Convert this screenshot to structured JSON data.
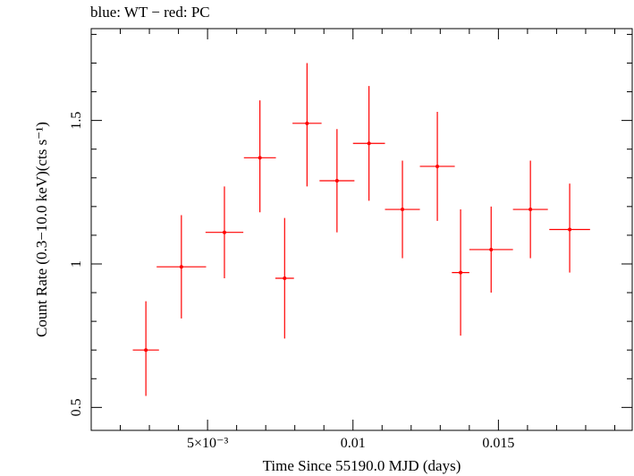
{
  "chart_data": {
    "type": "scatter",
    "title": "blue: WT − red: PC",
    "xlabel": "Time Since 55190.0 MJD (days)",
    "ylabel": "Count Rate (0.3−10.0 keV)(cts s⁻¹)",
    "xlim": [
      0.001,
      0.0196
    ],
    "ylim": [
      0.42,
      1.82
    ],
    "x_ticks": [
      {
        "value": 0.005,
        "label": "5×10⁻³"
      },
      {
        "value": 0.01,
        "label": "0.01"
      },
      {
        "value": 0.015,
        "label": "0.015"
      }
    ],
    "y_ticks": [
      {
        "value": 0.5,
        "label": "0.5"
      },
      {
        "value": 1.0,
        "label": "1"
      },
      {
        "value": 1.5,
        "label": "1.5"
      }
    ],
    "series": [
      {
        "color": "#ff0000",
        "points": [
          {
            "x": 0.00288,
            "xerr": 0.00045,
            "y": 0.7,
            "ylo": 0.54,
            "yhi": 0.87
          },
          {
            "x": 0.0041,
            "xerr": 0.00085,
            "y": 0.99,
            "ylo": 0.81,
            "yhi": 1.17
          },
          {
            "x": 0.00558,
            "xerr": 0.00065,
            "y": 1.11,
            "ylo": 0.95,
            "yhi": 1.27
          },
          {
            "x": 0.0068,
            "xerr": 0.00055,
            "y": 1.37,
            "ylo": 1.18,
            "yhi": 1.57
          },
          {
            "x": 0.00765,
            "xerr": 0.00032,
            "y": 0.95,
            "ylo": 0.74,
            "yhi": 1.16
          },
          {
            "x": 0.00842,
            "xerr": 0.0005,
            "y": 1.49,
            "ylo": 1.27,
            "yhi": 1.7
          },
          {
            "x": 0.00945,
            "xerr": 0.0006,
            "y": 1.29,
            "ylo": 1.11,
            "yhi": 1.47
          },
          {
            "x": 0.01055,
            "xerr": 0.00055,
            "y": 1.42,
            "ylo": 1.22,
            "yhi": 1.62
          },
          {
            "x": 0.0117,
            "xerr": 0.0006,
            "y": 1.19,
            "ylo": 1.02,
            "yhi": 1.36
          },
          {
            "x": 0.0129,
            "xerr": 0.0006,
            "y": 1.34,
            "ylo": 1.15,
            "yhi": 1.53
          },
          {
            "x": 0.0137,
            "xerr": 0.0003,
            "y": 0.97,
            "ylo": 0.75,
            "yhi": 1.19
          },
          {
            "x": 0.01475,
            "xerr": 0.00075,
            "y": 1.05,
            "ylo": 0.9,
            "yhi": 1.2
          },
          {
            "x": 0.0161,
            "xerr": 0.0006,
            "y": 1.19,
            "ylo": 1.02,
            "yhi": 1.36
          },
          {
            "x": 0.01745,
            "xerr": 0.0007,
            "y": 1.12,
            "ylo": 0.97,
            "yhi": 1.28
          }
        ]
      }
    ],
    "grid": false
  }
}
